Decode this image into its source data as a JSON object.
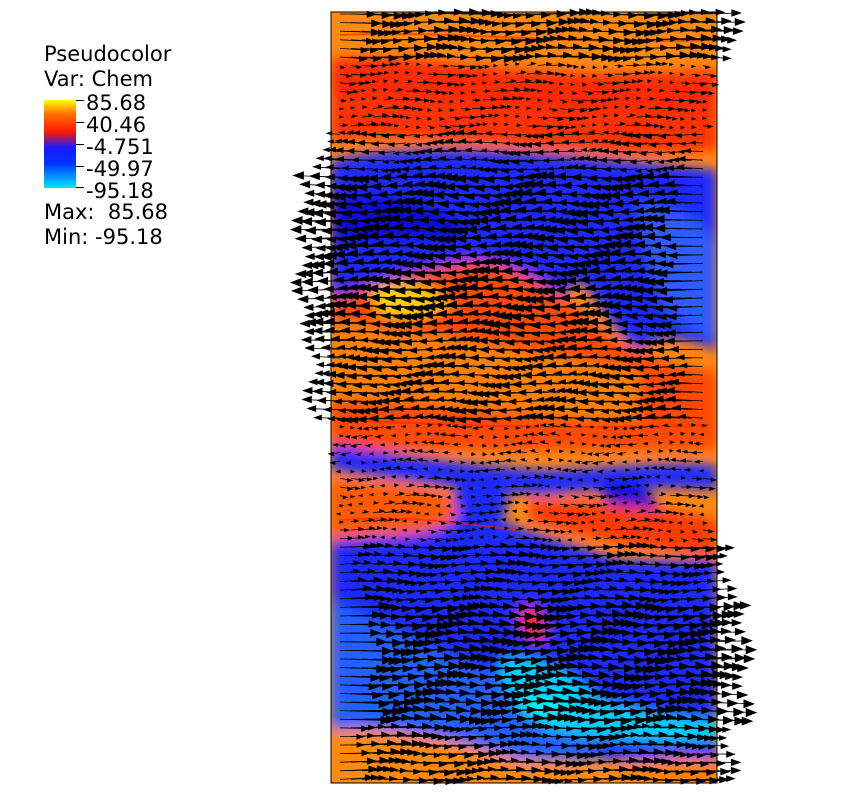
{
  "legend": {
    "plot_type": "Pseudocolor",
    "variable": "Var: Chem",
    "ticks": [
      "85.68",
      "40.46",
      "-4.751",
      "-49.97",
      "-95.18"
    ],
    "max_label": "Max:  85.68",
    "min_label": "Min: -95.18"
  },
  "colors": {
    "high": "#ffff00",
    "upper": "#ff8c00",
    "mid_high": "#ff2000",
    "mid_low": "#1a1aff",
    "low": "#00e6ff",
    "arrows": "#000000"
  }
}
